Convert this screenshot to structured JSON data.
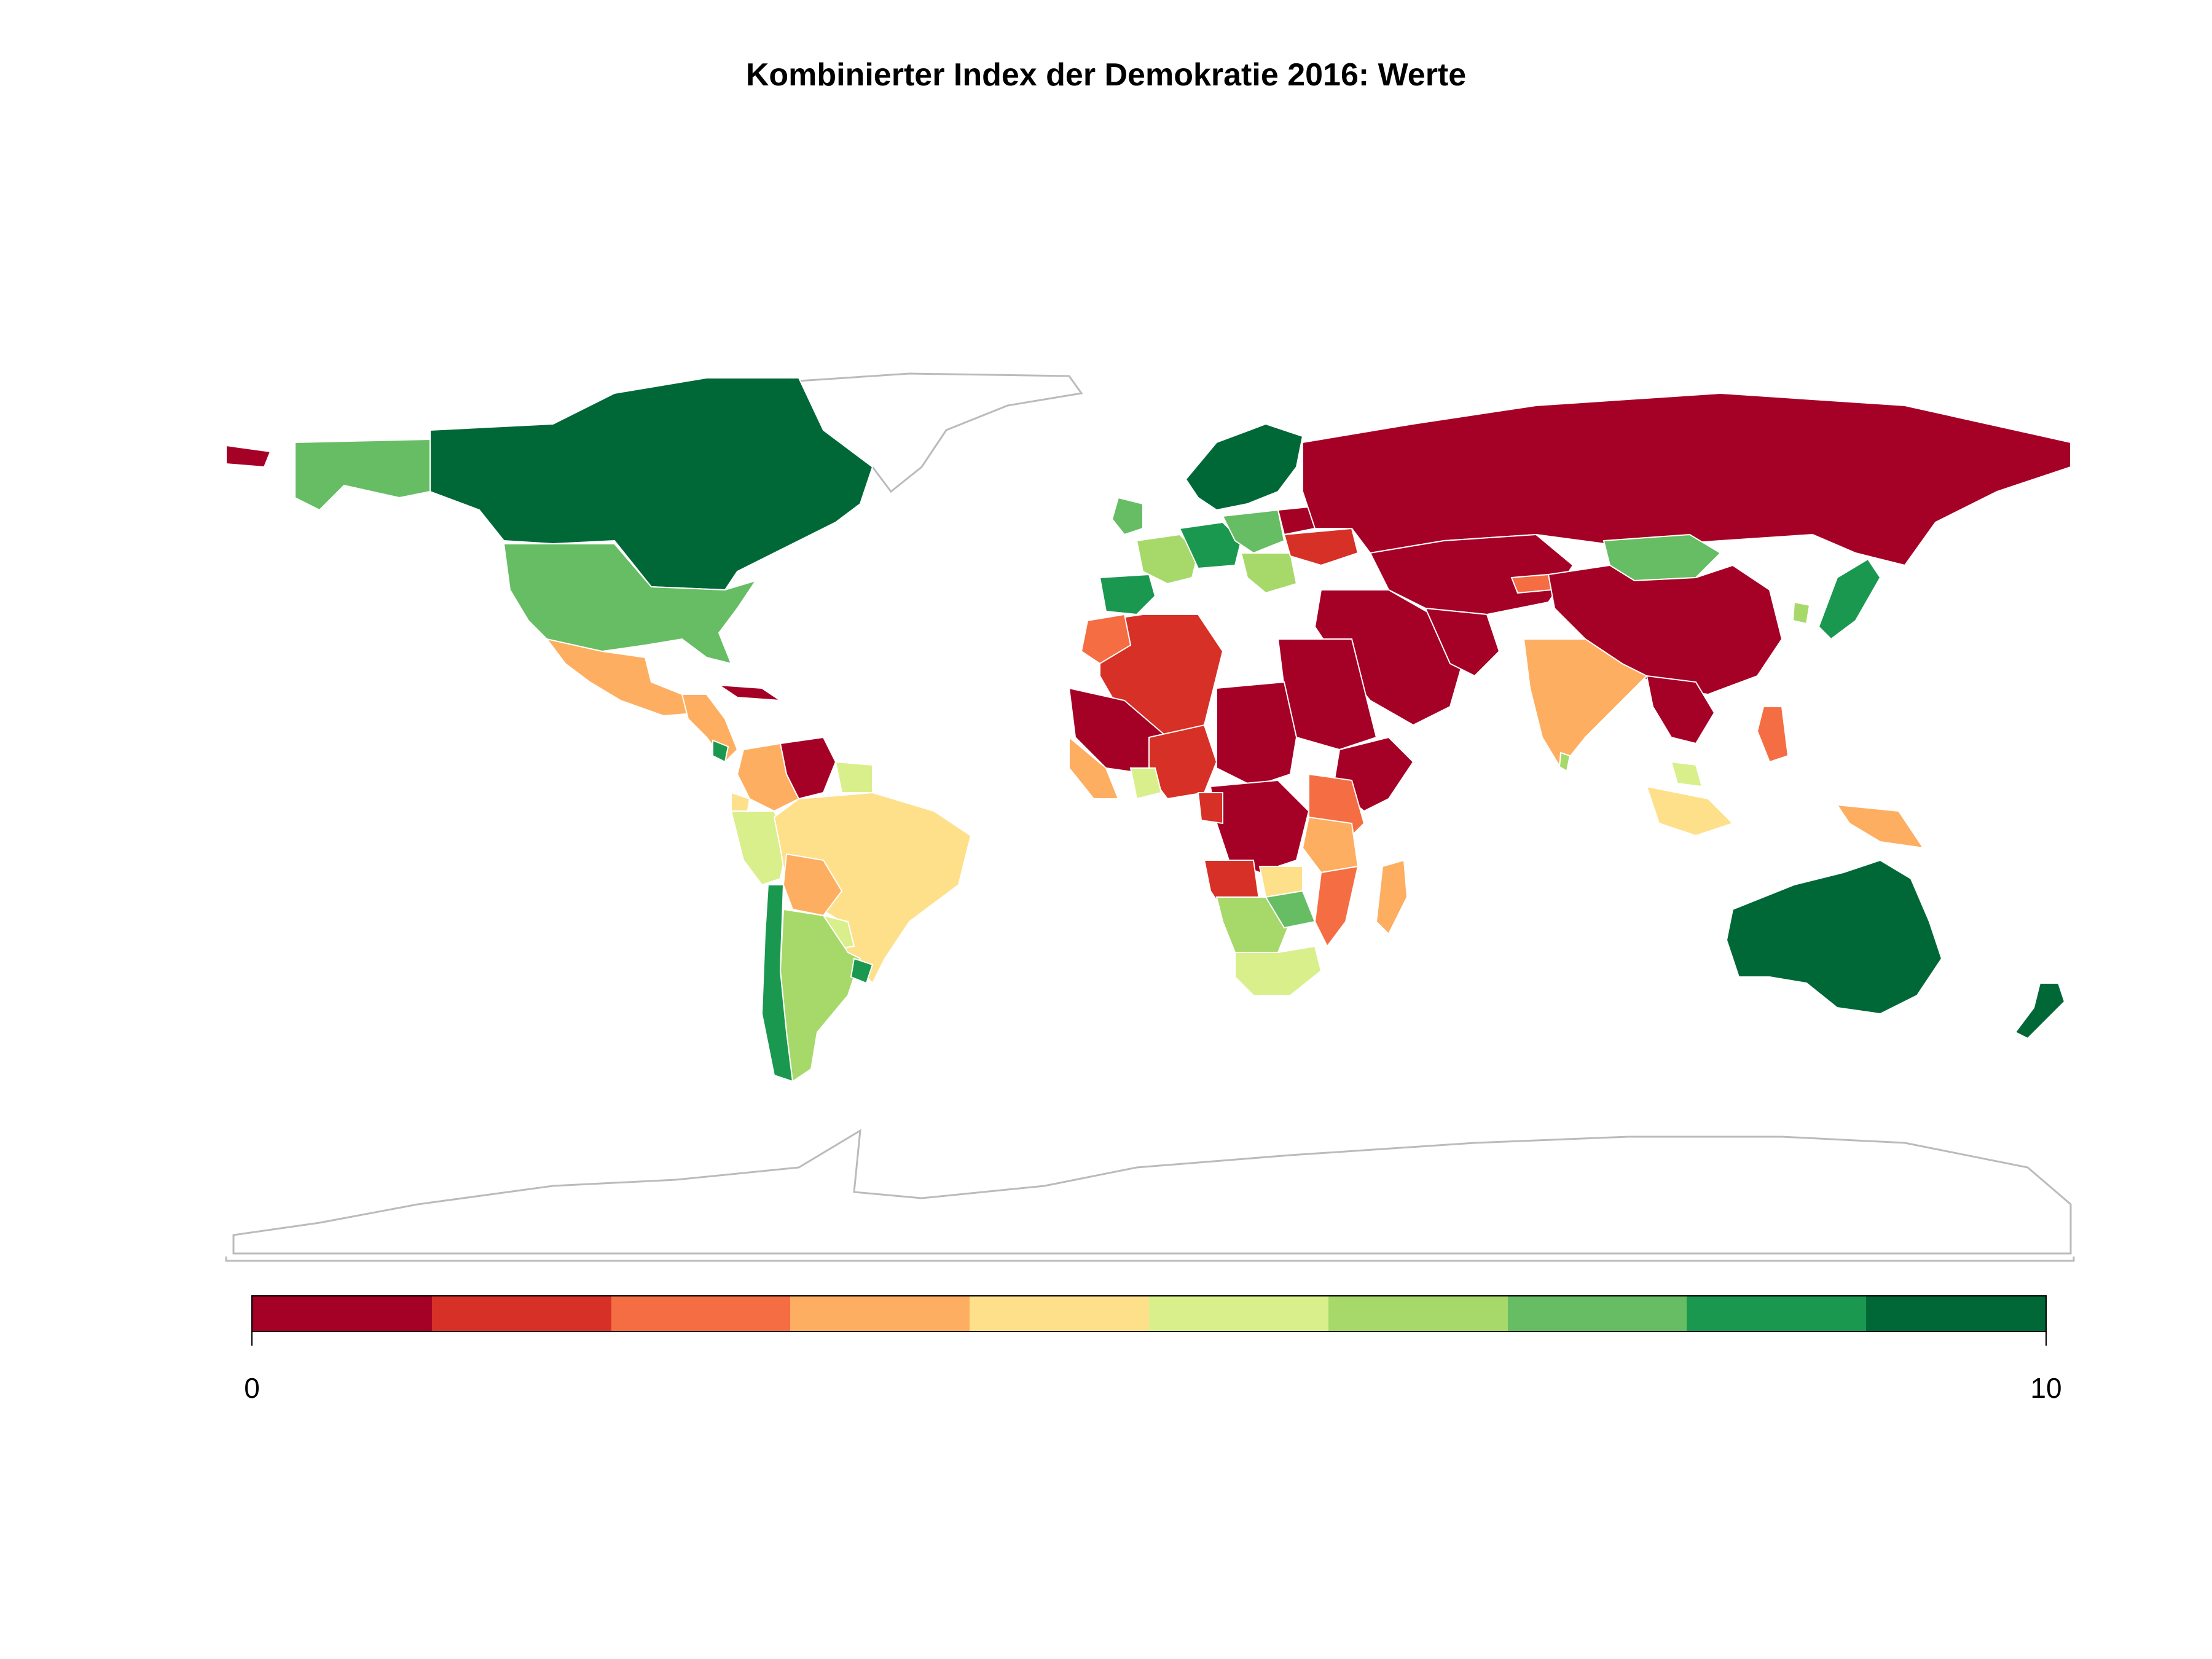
{
  "title": "Kombinierter Index der Demokratie 2016: Werte",
  "legend": {
    "min_label": "0",
    "max_label": "10",
    "range": [
      0,
      10
    ],
    "colors": [
      "#a50026",
      "#d73027",
      "#f46d43",
      "#fdae61",
      "#fee08b",
      "#d9ef8b",
      "#a6d96a",
      "#66bd63",
      "#1a9850",
      "#006837"
    ]
  },
  "map": {
    "projection": "equirectangular world",
    "no_data_color": "#ffffff",
    "border_color": "#bbbbbb"
  }
}
